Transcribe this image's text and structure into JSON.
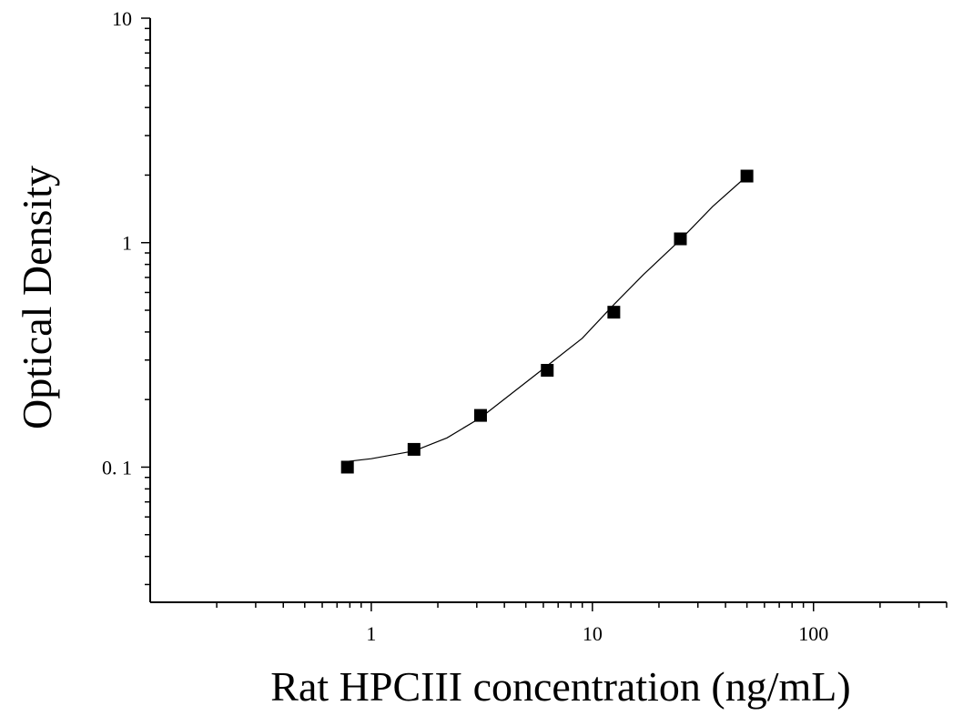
{
  "chart_data": {
    "type": "scatter",
    "xlabel": "Rat HPCIII concentration (ng/mL)",
    "ylabel": "Optical Density",
    "x_scale": "log",
    "y_scale": "log",
    "xlim": [
      0.1,
      400
    ],
    "ylim": [
      0.025,
      10
    ],
    "x_ticks": [
      {
        "value": 1,
        "label": "1"
      },
      {
        "value": 10,
        "label": "10"
      },
      {
        "value": 100,
        "label": "100"
      }
    ],
    "y_ticks": [
      {
        "value": 0.1,
        "label": "0. 1"
      },
      {
        "value": 1,
        "label": "1"
      },
      {
        "value": 10,
        "label": "10"
      }
    ],
    "grid": false,
    "legend": "none",
    "series": [
      {
        "x": [
          0.78,
          1.56,
          3.12,
          6.25,
          12.5,
          25,
          50
        ],
        "y": [
          0.1,
          0.12,
          0.17,
          0.27,
          0.49,
          1.04,
          1.98
        ],
        "marker": "square",
        "color": "#000000"
      }
    ],
    "fit_curve": {
      "x": [
        0.78,
        1,
        1.56,
        2.2,
        3.12,
        4.5,
        6.25,
        9,
        12.5,
        17,
        25,
        35,
        50
      ],
      "y": [
        0.106,
        0.109,
        0.118,
        0.135,
        0.166,
        0.22,
        0.283,
        0.375,
        0.53,
        0.72,
        1.03,
        1.45,
        1.98
      ],
      "color": "#000000"
    }
  }
}
